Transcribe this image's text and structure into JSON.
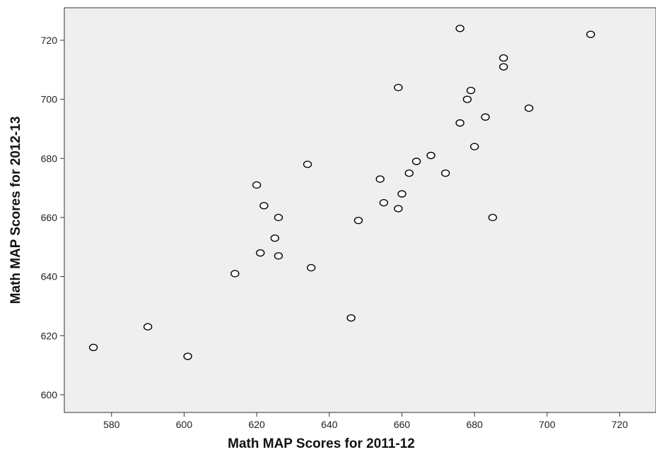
{
  "chart_data": {
    "type": "scatter",
    "title": "",
    "xlabel": "Math MAP Scores for 2011-12",
    "ylabel": "Math MAP Scores for 2012-13",
    "xlim": [
      567,
      730
    ],
    "ylim": [
      594,
      731
    ],
    "xticks": [
      580,
      600,
      620,
      640,
      660,
      680,
      700,
      720
    ],
    "yticks": [
      600,
      620,
      640,
      660,
      680,
      700,
      720
    ],
    "grid": false,
    "colors": {
      "plot_background": "#efefef",
      "marker_edge": "#000000",
      "marker_fill": "#ffffff"
    },
    "points": [
      {
        "x": 575,
        "y": 616
      },
      {
        "x": 590,
        "y": 623
      },
      {
        "x": 601,
        "y": 613
      },
      {
        "x": 614,
        "y": 641
      },
      {
        "x": 620,
        "y": 671
      },
      {
        "x": 621,
        "y": 648
      },
      {
        "x": 622,
        "y": 664
      },
      {
        "x": 625,
        "y": 653
      },
      {
        "x": 626,
        "y": 660
      },
      {
        "x": 626,
        "y": 647
      },
      {
        "x": 634,
        "y": 678
      },
      {
        "x": 635,
        "y": 643
      },
      {
        "x": 646,
        "y": 626
      },
      {
        "x": 648,
        "y": 659
      },
      {
        "x": 654,
        "y": 673
      },
      {
        "x": 655,
        "y": 665
      },
      {
        "x": 659,
        "y": 704
      },
      {
        "x": 659,
        "y": 663
      },
      {
        "x": 660,
        "y": 668
      },
      {
        "x": 662,
        "y": 675
      },
      {
        "x": 664,
        "y": 679
      },
      {
        "x": 668,
        "y": 681
      },
      {
        "x": 672,
        "y": 675
      },
      {
        "x": 676,
        "y": 724
      },
      {
        "x": 676,
        "y": 692
      },
      {
        "x": 678,
        "y": 700
      },
      {
        "x": 679,
        "y": 703
      },
      {
        "x": 680,
        "y": 684
      },
      {
        "x": 683,
        "y": 694
      },
      {
        "x": 685,
        "y": 660
      },
      {
        "x": 688,
        "y": 714
      },
      {
        "x": 688,
        "y": 711
      },
      {
        "x": 695,
        "y": 697
      },
      {
        "x": 712,
        "y": 722
      }
    ]
  }
}
